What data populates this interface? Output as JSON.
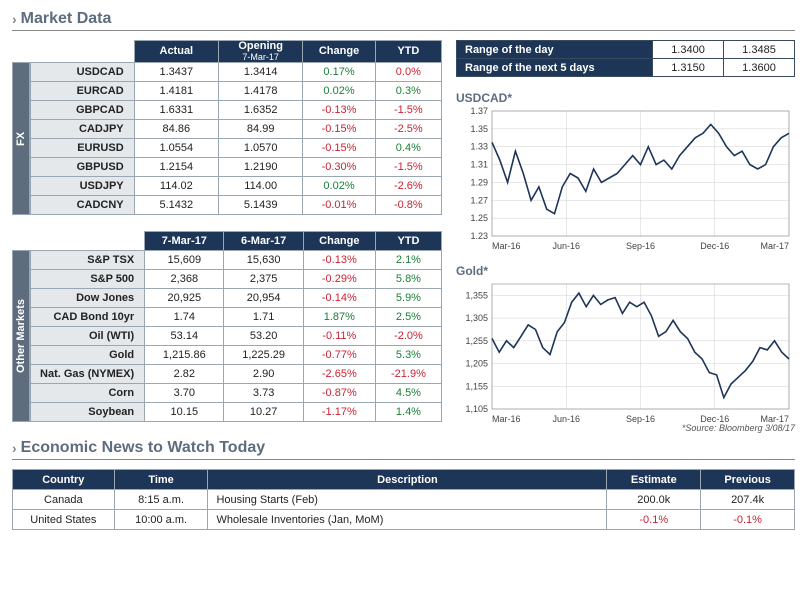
{
  "sections": {
    "market": "Market Data",
    "econ": "Economic News to Watch Today"
  },
  "range": {
    "rows": [
      {
        "label": "Range of the day",
        "low": "1.3400",
        "high": "1.3485"
      },
      {
        "label": "Range of the next 5 days",
        "low": "1.3150",
        "high": "1.3600"
      }
    ]
  },
  "fx": {
    "side": "FX",
    "headers": [
      "Actual",
      {
        "top": "Opening",
        "bottom": "7-Mar-17"
      },
      "Change",
      "YTD"
    ],
    "rows": [
      {
        "sym": "USDCAD",
        "actual": "1.3437",
        "open": "1.3414",
        "chg": "0.17%",
        "chg_dir": "pos",
        "ytd": "0.0%",
        "ytd_dir": "flat"
      },
      {
        "sym": "EURCAD",
        "actual": "1.4181",
        "open": "1.4178",
        "chg": "0.02%",
        "chg_dir": "pos",
        "ytd": "0.3%",
        "ytd_dir": "pos"
      },
      {
        "sym": "GBPCAD",
        "actual": "1.6331",
        "open": "1.6352",
        "chg": "-0.13%",
        "chg_dir": "neg",
        "ytd": "-1.5%",
        "ytd_dir": "neg"
      },
      {
        "sym": "CADJPY",
        "actual": "84.86",
        "open": "84.99",
        "chg": "-0.15%",
        "chg_dir": "neg",
        "ytd": "-2.5%",
        "ytd_dir": "neg"
      },
      {
        "sym": "EURUSD",
        "actual": "1.0554",
        "open": "1.0570",
        "chg": "-0.15%",
        "chg_dir": "neg",
        "ytd": "0.4%",
        "ytd_dir": "pos"
      },
      {
        "sym": "GBPUSD",
        "actual": "1.2154",
        "open": "1.2190",
        "chg": "-0.30%",
        "chg_dir": "neg",
        "ytd": "-1.5%",
        "ytd_dir": "neg"
      },
      {
        "sym": "USDJPY",
        "actual": "114.02",
        "open": "114.00",
        "chg": "0.02%",
        "chg_dir": "pos",
        "ytd": "-2.6%",
        "ytd_dir": "neg"
      },
      {
        "sym": "CADCNY",
        "actual": "5.1432",
        "open": "5.1439",
        "chg": "-0.01%",
        "chg_dir": "neg",
        "ytd": "-0.8%",
        "ytd_dir": "neg"
      }
    ]
  },
  "other": {
    "side": "Other Markets",
    "headers": [
      "7-Mar-17",
      "6-Mar-17",
      "Change",
      "YTD"
    ],
    "rows": [
      {
        "sym": "S&P TSX",
        "d1": "15,609",
        "d0": "15,630",
        "chg": "-0.13%",
        "chg_dir": "neg",
        "ytd": "2.1%",
        "ytd_dir": "pos"
      },
      {
        "sym": "S&P 500",
        "d1": "2,368",
        "d0": "2,375",
        "chg": "-0.29%",
        "chg_dir": "neg",
        "ytd": "5.8%",
        "ytd_dir": "pos"
      },
      {
        "sym": "Dow Jones",
        "d1": "20,925",
        "d0": "20,954",
        "chg": "-0.14%",
        "chg_dir": "neg",
        "ytd": "5.9%",
        "ytd_dir": "pos"
      },
      {
        "sym": "CAD Bond 10yr",
        "d1": "1.74",
        "d0": "1.71",
        "chg": "1.87%",
        "chg_dir": "pos",
        "ytd": "2.5%",
        "ytd_dir": "pos"
      },
      {
        "sym": "Oil (WTI)",
        "d1": "53.14",
        "d0": "53.20",
        "chg": "-0.11%",
        "chg_dir": "neg",
        "ytd": "-2.0%",
        "ytd_dir": "neg"
      },
      {
        "sym": "Gold",
        "d1": "1,215.86",
        "d0": "1,225.29",
        "chg": "-0.77%",
        "chg_dir": "neg",
        "ytd": "5.3%",
        "ytd_dir": "pos"
      },
      {
        "sym": "Nat. Gas (NYMEX)",
        "d1": "2.82",
        "d0": "2.90",
        "chg": "-2.65%",
        "chg_dir": "neg",
        "ytd": "-21.9%",
        "ytd_dir": "neg"
      },
      {
        "sym": "Corn",
        "d1": "3.70",
        "d0": "3.73",
        "chg": "-0.87%",
        "chg_dir": "neg",
        "ytd": "4.5%",
        "ytd_dir": "pos"
      },
      {
        "sym": "Soybean",
        "d1": "10.15",
        "d0": "10.27",
        "chg": "-1.17%",
        "chg_dir": "neg",
        "ytd": "1.4%",
        "ytd_dir": "pos"
      }
    ]
  },
  "charts": {
    "usdcad": {
      "title": "USDCAD*",
      "type": "line",
      "color": "#1d3557",
      "grid_color": "#d0d0d0",
      "bg": "#ffffff",
      "xlabels": [
        "Mar-16",
        "Jun-16",
        "Sep-16",
        "Dec-16",
        "Mar-17"
      ],
      "ylim": [
        1.23,
        1.37
      ],
      "ytick_step": 0.02,
      "values": [
        1.335,
        1.315,
        1.29,
        1.325,
        1.3,
        1.27,
        1.285,
        1.26,
        1.255,
        1.285,
        1.3,
        1.295,
        1.28,
        1.305,
        1.29,
        1.295,
        1.3,
        1.31,
        1.32,
        1.31,
        1.33,
        1.31,
        1.315,
        1.305,
        1.32,
        1.33,
        1.34,
        1.345,
        1.355,
        1.345,
        1.33,
        1.32,
        1.325,
        1.31,
        1.305,
        1.31,
        1.33,
        1.34,
        1.345
      ]
    },
    "gold": {
      "title": "Gold*",
      "type": "line",
      "color": "#1d3557",
      "grid_color": "#d0d0d0",
      "bg": "#ffffff",
      "xlabels": [
        "Mar-16",
        "Jun-16",
        "Sep-16",
        "Dec-16",
        "Mar-17"
      ],
      "ylim": [
        1105,
        1380
      ],
      "ytick_step": 50,
      "values": [
        1260,
        1230,
        1255,
        1240,
        1265,
        1290,
        1280,
        1240,
        1225,
        1275,
        1295,
        1340,
        1360,
        1330,
        1355,
        1335,
        1345,
        1350,
        1315,
        1340,
        1330,
        1340,
        1310,
        1265,
        1275,
        1300,
        1275,
        1260,
        1230,
        1215,
        1185,
        1180,
        1130,
        1160,
        1175,
        1190,
        1210,
        1240,
        1235,
        1255,
        1230,
        1215
      ]
    },
    "source_note": "*Source: Bloomberg  3/08/17"
  },
  "econ": {
    "headers": [
      "Country",
      "Time",
      "Description",
      "Estimate",
      "Previous"
    ],
    "rows": [
      {
        "country": "Canada",
        "time": "8:15 a.m.",
        "desc": "Housing Starts (Feb)",
        "est": "200.0k",
        "prev": "207.4k",
        "est_dir": "",
        "prev_dir": ""
      },
      {
        "country": "United States",
        "time": "10:00 a.m.",
        "desc": "Wholesale Inventories (Jan, MoM)",
        "est": "-0.1%",
        "prev": "-0.1%",
        "est_dir": "neg",
        "prev_dir": "neg"
      }
    ]
  },
  "style": {
    "font_family": "Arial",
    "base_fontsize": 11,
    "header_fontsize": 16
  }
}
